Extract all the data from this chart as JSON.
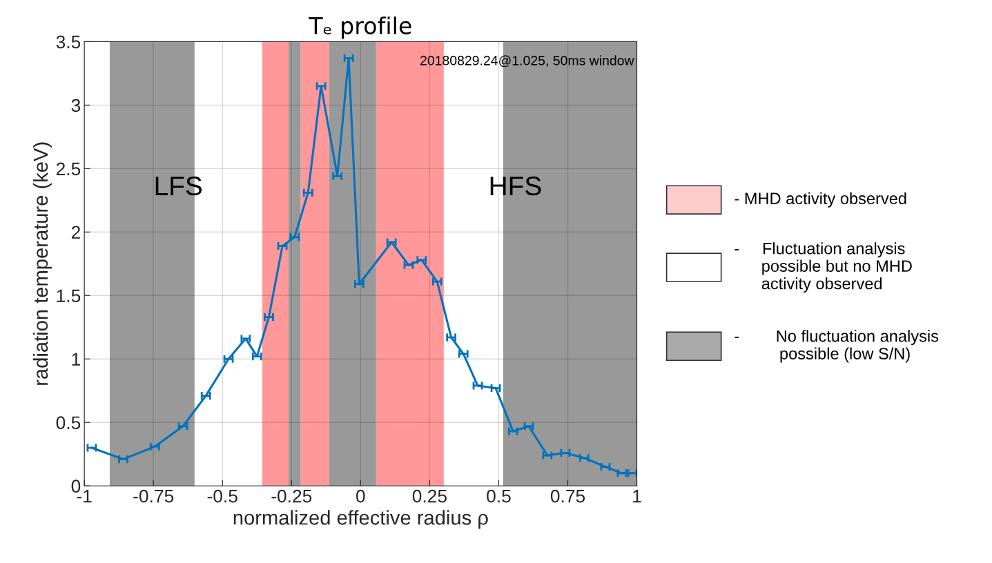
{
  "chart_data": {
    "type": "line",
    "title": "Tₑ profile",
    "xlabel": "normalized effective radius ρ",
    "ylabel": "radiation temperature (keV)",
    "x": [
      -0.973,
      -0.859,
      -0.745,
      -0.643,
      -0.56,
      -0.478,
      -0.416,
      -0.375,
      -0.332,
      -0.283,
      -0.239,
      -0.19,
      -0.143,
      -0.084,
      -0.043,
      -0.005,
      0.112,
      0.174,
      0.221,
      0.277,
      0.328,
      0.372,
      0.424,
      0.489,
      0.552,
      0.609,
      0.676,
      0.741,
      0.81,
      0.886,
      0.946,
      0.984
    ],
    "series": [
      {
        "color": "#0072bd",
        "values": [
          0.3,
          0.21,
          0.31,
          0.47,
          0.71,
          1.0,
          1.16,
          1.02,
          1.33,
          1.89,
          1.96,
          2.31,
          3.15,
          2.44,
          3.37,
          1.59,
          1.92,
          1.74,
          1.78,
          1.61,
          1.17,
          1.04,
          0.79,
          0.77,
          0.43,
          0.47,
          0.24,
          0.26,
          0.22,
          0.15,
          0.1,
          0.1
        ],
        "xerrors": [
          0.015,
          0.015,
          0.015,
          0.015,
          0.015,
          0.015,
          0.015,
          0.015,
          0.015,
          0.015,
          0.015,
          0.015,
          0.015,
          0.015,
          0.015,
          0.015,
          0.015,
          0.015,
          0.015,
          0.015,
          0.015,
          0.015,
          0.015,
          0.015,
          0.015,
          0.015,
          0.015,
          0.015,
          0.015,
          0.015,
          0.015,
          0.015
        ]
      }
    ],
    "xlim": [
      -1,
      1
    ],
    "ylim": [
      0,
      3.5
    ],
    "xticks": [
      {
        "value": -1,
        "label": "-1"
      },
      {
        "value": -0.75,
        "label": "-0.75"
      },
      {
        "value": -0.5,
        "label": "-0.5"
      },
      {
        "value": -0.25,
        "label": "-0.25"
      },
      0,
      0.25,
      0.5,
      0.75,
      1
    ],
    "yticks": [
      0,
      0.5,
      1,
      1.5,
      2,
      2.5,
      3,
      3.5
    ],
    "bands": [
      {
        "axis": "x",
        "from": -0.356,
        "to": -0.261,
        "color": "#ff9999"
      },
      {
        "axis": "x",
        "from": -0.217,
        "to": -0.114,
        "color": "#ff9999"
      },
      {
        "axis": "x",
        "from": 0.056,
        "to": 0.301,
        "color": "#ff9999"
      },
      {
        "axis": "x",
        "from": -0.908,
        "to": -0.601,
        "color": "#999999"
      },
      {
        "axis": "x",
        "from": -0.261,
        "to": -0.217,
        "color": "#999999"
      },
      {
        "axis": "x",
        "from": -0.114,
        "to": 0.056,
        "color": "#999999"
      },
      {
        "axis": "x",
        "from": 0.516,
        "to": 1,
        "color": "#999999"
      }
    ],
    "annotations": [
      "LFS",
      "HFS",
      "20180829.24@1.025, 50ms window",
      "- MHD activity observed",
      "-     Fluctuation analysis\n      possible but no MHD\n      activity observed",
      "-        No fluctuation analysis\n          possible (low S/N)"
    ],
    "grid": true,
    "marker": "none",
    "line_style": "solid"
  }
}
